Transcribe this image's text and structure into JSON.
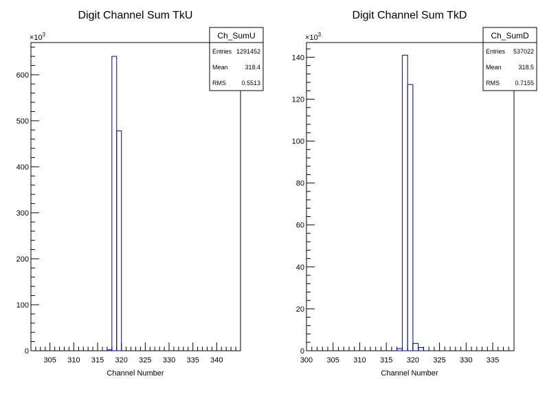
{
  "chart_data": [
    {
      "type": "bar",
      "histogram": true,
      "title": "Digit Channel Sum TkU",
      "xlabel": "Channel Number",
      "ylabel": "",
      "y_multiplier": "×10",
      "y_multiplier_exp": "3",
      "xlim": [
        301,
        345
      ],
      "ylim": [
        0,
        670
      ],
      "xticks": [
        305,
        310,
        315,
        320,
        325,
        330,
        335,
        340
      ],
      "yticks": [
        0,
        100,
        200,
        300,
        400,
        500,
        600
      ],
      "bin_width": 1,
      "bins": [
        {
          "x": 317,
          "y": 2
        },
        {
          "x": 318,
          "y": 640
        },
        {
          "x": 319,
          "y": 478
        }
      ],
      "line_color": "#000080",
      "stats": {
        "name": "Ch_SumU",
        "rows": [
          {
            "label": "Entries",
            "value": "1291452"
          },
          {
            "label": "Mean",
            "value": "318.4"
          },
          {
            "label": "RMS",
            "value": "0.5513"
          }
        ]
      }
    },
    {
      "type": "bar",
      "histogram": true,
      "title": "Digit Channel Sum TkD",
      "xlabel": "Channel Number",
      "ylabel": "",
      "y_multiplier": "×10",
      "y_multiplier_exp": "3",
      "xlim": [
        300,
        339
      ],
      "ylim": [
        0,
        147
      ],
      "xticks": [
        300,
        305,
        310,
        315,
        320,
        325,
        330,
        335
      ],
      "yticks": [
        0,
        20,
        40,
        60,
        80,
        100,
        120,
        140
      ],
      "bin_width": 1,
      "bins": [
        {
          "x": 317,
          "y": 1
        },
        {
          "x": 318,
          "y": 141
        },
        {
          "x": 319,
          "y": 127
        },
        {
          "x": 320,
          "y": 3.5
        },
        {
          "x": 321,
          "y": 1.5
        }
      ],
      "line_color": "#000080",
      "stats": {
        "name": "Ch_SumD",
        "rows": [
          {
            "label": "Entries",
            "value": "537022"
          },
          {
            "label": "Mean",
            "value": "318.5"
          },
          {
            "label": "RMS",
            "value": "0.7155"
          }
        ]
      }
    }
  ]
}
